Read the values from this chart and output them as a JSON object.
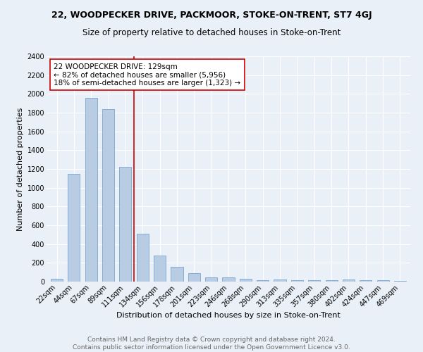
{
  "title1": "22, WOODPECKER DRIVE, PACKMOOR, STOKE-ON-TRENT, ST7 4GJ",
  "title2": "Size of property relative to detached houses in Stoke-on-Trent",
  "xlabel": "Distribution of detached houses by size in Stoke-on-Trent",
  "ylabel": "Number of detached properties",
  "categories": [
    "22sqm",
    "44sqm",
    "67sqm",
    "89sqm",
    "111sqm",
    "134sqm",
    "156sqm",
    "178sqm",
    "201sqm",
    "223sqm",
    "246sqm",
    "268sqm",
    "290sqm",
    "313sqm",
    "335sqm",
    "357sqm",
    "380sqm",
    "402sqm",
    "424sqm",
    "447sqm",
    "469sqm"
  ],
  "values": [
    30,
    1150,
    1960,
    1840,
    1220,
    510,
    275,
    155,
    90,
    47,
    42,
    30,
    18,
    20,
    18,
    15,
    14,
    22,
    13,
    12,
    10
  ],
  "bar_color": "#b8cce4",
  "bar_edge_color": "#7ba7cc",
  "vline_color": "#cc0000",
  "annotation_text": "22 WOODPECKER DRIVE: 129sqm\n← 82% of detached houses are smaller (5,956)\n18% of semi-detached houses are larger (1,323) →",
  "annotation_box_color": "#ffffff",
  "annotation_box_edge": "#cc0000",
  "ylim": [
    0,
    2400
  ],
  "yticks": [
    0,
    200,
    400,
    600,
    800,
    1000,
    1200,
    1400,
    1600,
    1800,
    2000,
    2200,
    2400
  ],
  "footer1": "Contains HM Land Registry data © Crown copyright and database right 2024.",
  "footer2": "Contains public sector information licensed under the Open Government Licence v3.0.",
  "bg_color": "#eaf0f8",
  "plot_bg_color": "#eaf0f8",
  "grid_color": "#ffffff",
  "title1_fontsize": 9,
  "title2_fontsize": 8.5,
  "xlabel_fontsize": 8,
  "ylabel_fontsize": 8,
  "tick_fontsize": 7,
  "annotation_fontsize": 7.5,
  "footer_fontsize": 6.5
}
